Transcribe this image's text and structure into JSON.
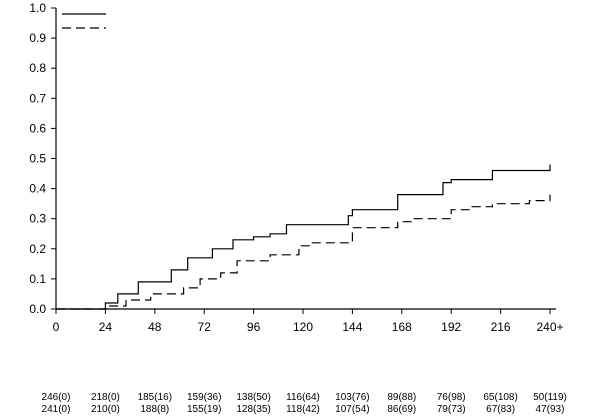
{
  "chart_data": {
    "type": "line",
    "xlabel": "",
    "ylabel": "",
    "xlim": [
      0,
      240
    ],
    "ylim": [
      0,
      1.0
    ],
    "x_ticks": [
      "0",
      "24",
      "48",
      "72",
      "96",
      "120",
      "144",
      "168",
      "192",
      "216",
      "240+"
    ],
    "y_ticks": [
      "0.0",
      "0.1",
      "0.2",
      "0.3",
      "0.4",
      "0.5",
      "0.6",
      "0.7",
      "0.8",
      "0.9",
      "1.0"
    ],
    "legend_placement": "top-left",
    "series": [
      {
        "style": "solid",
        "color": "#000000",
        "steps": [
          [
            0,
            0
          ],
          [
            24,
            0
          ],
          [
            24,
            0.02
          ],
          [
            30,
            0.02
          ],
          [
            30,
            0.05
          ],
          [
            40,
            0.05
          ],
          [
            40,
            0.09
          ],
          [
            56,
            0.09
          ],
          [
            56,
            0.13
          ],
          [
            64,
            0.13
          ],
          [
            64,
            0.17
          ],
          [
            76,
            0.17
          ],
          [
            76,
            0.2
          ],
          [
            86,
            0.2
          ],
          [
            86,
            0.23
          ],
          [
            96,
            0.23
          ],
          [
            96,
            0.24
          ],
          [
            104,
            0.24
          ],
          [
            104,
            0.25
          ],
          [
            112,
            0.25
          ],
          [
            112,
            0.28
          ],
          [
            142,
            0.28
          ],
          [
            142,
            0.31
          ],
          [
            144,
            0.31
          ],
          [
            144,
            0.33
          ],
          [
            166,
            0.33
          ],
          [
            166,
            0.38
          ],
          [
            188,
            0.38
          ],
          [
            188,
            0.42
          ],
          [
            192,
            0.42
          ],
          [
            192,
            0.43
          ],
          [
            212,
            0.43
          ],
          [
            212,
            0.46
          ],
          [
            240,
            0.46
          ],
          [
            240,
            0.48
          ]
        ]
      },
      {
        "style": "dashed",
        "color": "#000000",
        "steps": [
          [
            0,
            0
          ],
          [
            26,
            0
          ],
          [
            26,
            0.01
          ],
          [
            34,
            0.01
          ],
          [
            34,
            0.03
          ],
          [
            46,
            0.03
          ],
          [
            46,
            0.05
          ],
          [
            62,
            0.05
          ],
          [
            62,
            0.07
          ],
          [
            70,
            0.07
          ],
          [
            70,
            0.1
          ],
          [
            80,
            0.1
          ],
          [
            80,
            0.12
          ],
          [
            88,
            0.12
          ],
          [
            88,
            0.16
          ],
          [
            104,
            0.16
          ],
          [
            104,
            0.18
          ],
          [
            118,
            0.18
          ],
          [
            118,
            0.21
          ],
          [
            124,
            0.21
          ],
          [
            124,
            0.22
          ],
          [
            144,
            0.22
          ],
          [
            144,
            0.27
          ],
          [
            166,
            0.27
          ],
          [
            166,
            0.29
          ],
          [
            174,
            0.29
          ],
          [
            174,
            0.3
          ],
          [
            192,
            0.3
          ],
          [
            192,
            0.33
          ],
          [
            202,
            0.33
          ],
          [
            202,
            0.34
          ],
          [
            212,
            0.34
          ],
          [
            212,
            0.35
          ],
          [
            230,
            0.35
          ],
          [
            230,
            0.36
          ],
          [
            240,
            0.36
          ],
          [
            240,
            0.38
          ]
        ]
      }
    ],
    "risk_table": {
      "time_points": [
        0,
        24,
        48,
        72,
        96,
        120,
        144,
        168,
        192,
        216,
        240
      ],
      "rows": [
        [
          "246(0)",
          "218(0)",
          "185(16)",
          "159(36)",
          "138(50)",
          "116(64)",
          "103(76)",
          "89(88)",
          "76(98)",
          "65(108)",
          "50(119)"
        ],
        [
          "241(0)",
          "210(0)",
          "188(8)",
          "155(19)",
          "128(35)",
          "118(42)",
          "107(54)",
          "86(69)",
          "79(73)",
          "67(83)",
          "47(93)"
        ]
      ]
    }
  }
}
